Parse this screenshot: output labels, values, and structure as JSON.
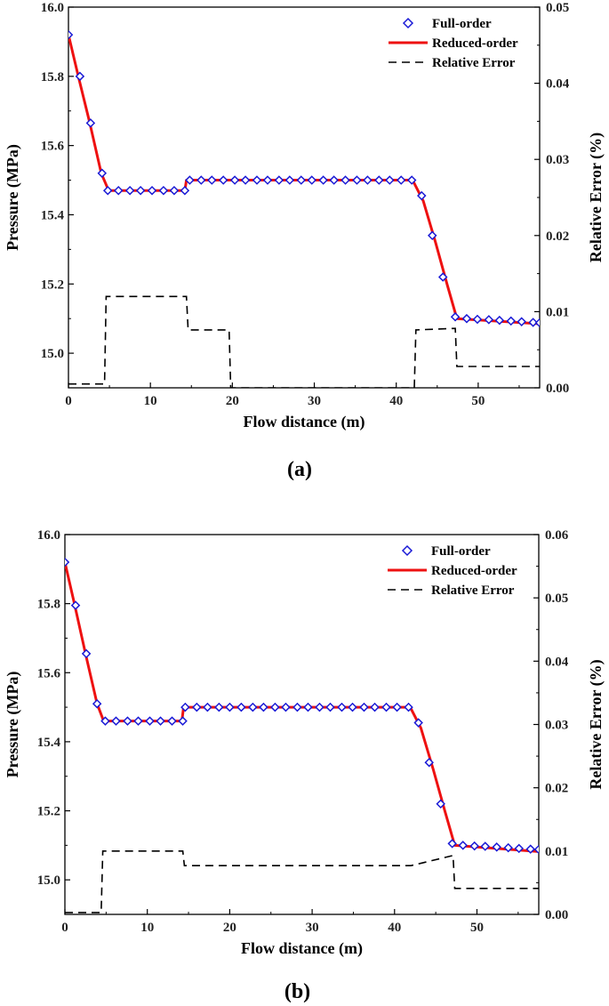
{
  "chart_data": [
    {
      "type": "line",
      "panel_label": "(a)",
      "xlabel": "Flow distance (m)",
      "ylabel": "Pressure (MPa)",
      "y2label": "Relative Error (%)",
      "xlim": [
        0,
        57.5
      ],
      "ylim": [
        14.9,
        16.0
      ],
      "y2lim": [
        0,
        0.05
      ],
      "xticks": [
        "0",
        "10",
        "20",
        "30",
        "40",
        "50"
      ],
      "yticks": [
        "15.0",
        "15.2",
        "15.4",
        "15.6",
        "15.8",
        "16.0"
      ],
      "y2ticks": [
        "0.00",
        "0.01",
        "0.02",
        "0.03",
        "0.04",
        "0.05"
      ],
      "legend_position": "top-right",
      "series": [
        {
          "name": "Full-order",
          "style": "markers-diamond",
          "color": "#1a1ad6",
          "x": [
            0,
            1.4,
            2.7,
            4.1,
            4.8,
            6.1,
            7.5,
            8.8,
            10.2,
            11.6,
            12.9,
            14.2,
            14.8,
            16.2,
            17.5,
            18.9,
            20.3,
            21.6,
            23,
            24.3,
            25.7,
            27,
            28.4,
            29.7,
            31.1,
            32.4,
            33.8,
            35.2,
            36.5,
            37.9,
            39.2,
            40.6,
            41.9,
            43.1,
            44.4,
            45.7,
            47.2,
            48.6,
            49.9,
            51.3,
            52.6,
            54,
            55.3,
            56.7,
            57.5
          ],
          "y": [
            15.92,
            15.8,
            15.665,
            15.52,
            15.47,
            15.47,
            15.47,
            15.47,
            15.47,
            15.47,
            15.47,
            15.47,
            15.5,
            15.5,
            15.5,
            15.5,
            15.5,
            15.5,
            15.5,
            15.5,
            15.5,
            15.5,
            15.5,
            15.5,
            15.5,
            15.5,
            15.5,
            15.5,
            15.5,
            15.5,
            15.5,
            15.5,
            15.5,
            15.455,
            15.34,
            15.22,
            15.105,
            15.1,
            15.098,
            15.097,
            15.095,
            15.093,
            15.091,
            15.089,
            15.088
          ]
        },
        {
          "name": "Reduced-order",
          "style": "solid",
          "color": "#ee1111",
          "x": [
            0,
            1.2,
            2.6,
            4.0,
            4.9,
            14.2,
            14.4,
            42.0,
            43.3,
            44.8,
            46.2,
            47.4,
            57.5
          ],
          "y": [
            15.92,
            15.8,
            15.665,
            15.52,
            15.47,
            15.47,
            15.5,
            15.5,
            15.44,
            15.32,
            15.2,
            15.1,
            15.085
          ]
        },
        {
          "name": "Relative Error",
          "style": "dashed",
          "axis": "right",
          "color": "#000000",
          "x": [
            0,
            4.4,
            4.6,
            14.4,
            14.6,
            19.6,
            19.8,
            42.2,
            42.4,
            47.2,
            47.4,
            57.5
          ],
          "y": [
            0.0005,
            0.0005,
            0.012,
            0.012,
            0.0076,
            0.0076,
            0,
            0,
            0.0076,
            0.0078,
            0.0028,
            0.0028
          ]
        }
      ]
    },
    {
      "type": "line",
      "panel_label": "(b)",
      "xlabel": "Flow distance (m)",
      "ylabel": "Pressure (MPa)",
      "y2label": "Relative Error (%)",
      "xlim": [
        0,
        57.5
      ],
      "ylim": [
        14.9,
        16.0
      ],
      "y2lim": [
        0,
        0.06
      ],
      "xticks": [
        "0",
        "10",
        "20",
        "30",
        "40",
        "50"
      ],
      "yticks": [
        "15.0",
        "15.2",
        "15.4",
        "15.6",
        "15.8",
        "16.0"
      ],
      "y2ticks": [
        "0.00",
        "0.01",
        "0.02",
        "0.03",
        "0.04",
        "0.05",
        "0.06"
      ],
      "legend_position": "top-right",
      "series": [
        {
          "name": "Full-order",
          "style": "markers-diamond",
          "color": "#1a1ad6",
          "x": [
            0,
            1.3,
            2.6,
            3.9,
            4.9,
            6.2,
            7.6,
            8.9,
            10.3,
            11.6,
            13,
            14.3,
            14.6,
            16,
            17.3,
            18.7,
            20,
            21.4,
            22.8,
            24.1,
            25.5,
            26.8,
            28.2,
            29.5,
            30.9,
            32.2,
            33.6,
            34.9,
            36.3,
            37.6,
            39,
            40.3,
            41.7,
            42.9,
            44.2,
            45.6,
            47,
            48.3,
            49.7,
            51,
            52.4,
            53.8,
            55.1,
            56.5,
            57.5
          ],
          "y": [
            15.92,
            15.795,
            15.655,
            15.51,
            15.46,
            15.46,
            15.46,
            15.46,
            15.46,
            15.46,
            15.46,
            15.46,
            15.5,
            15.5,
            15.5,
            15.5,
            15.5,
            15.5,
            15.5,
            15.5,
            15.5,
            15.5,
            15.5,
            15.5,
            15.5,
            15.5,
            15.5,
            15.5,
            15.5,
            15.5,
            15.5,
            15.5,
            15.5,
            15.455,
            15.34,
            15.22,
            15.105,
            15.1,
            15.098,
            15.097,
            15.095,
            15.093,
            15.091,
            15.089,
            15.088
          ]
        },
        {
          "name": "Reduced-order",
          "style": "solid",
          "color": "#ee1111",
          "x": [
            0,
            1.2,
            2.5,
            3.9,
            4.7,
            14.2,
            14.4,
            41.9,
            43.2,
            44.7,
            46.1,
            47.3,
            57.5
          ],
          "y": [
            15.92,
            15.795,
            15.655,
            15.51,
            15.46,
            15.46,
            15.5,
            15.5,
            15.44,
            15.32,
            15.2,
            15.1,
            15.082
          ]
        },
        {
          "name": "Relative Error",
          "style": "dashed",
          "axis": "right",
          "color": "#000000",
          "x": [
            0,
            4.4,
            4.6,
            14.3,
            14.5,
            42.0,
            47.1,
            47.3,
            57.5
          ],
          "y": [
            0.0003,
            0.0003,
            0.01,
            0.01,
            0.0077,
            0.0077,
            0.0093,
            0.0041,
            0.0041
          ]
        }
      ]
    }
  ]
}
